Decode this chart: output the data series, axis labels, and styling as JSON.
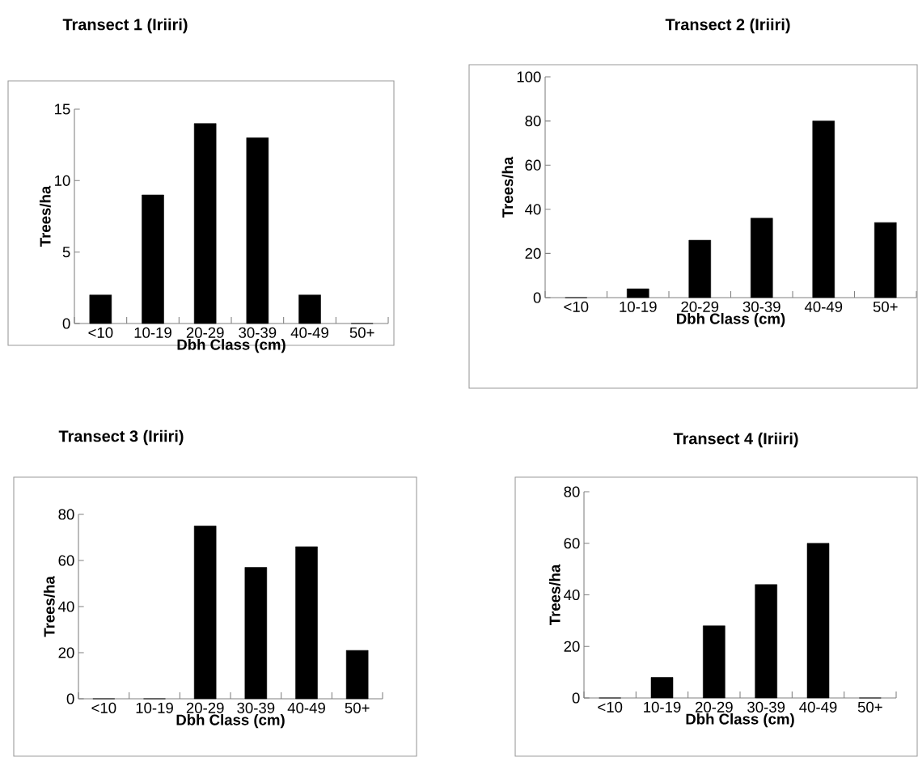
{
  "chart_data": [
    {
      "type": "bar",
      "title": "Transect 1 (Iriiri)",
      "xlabel": "Dbh Class (cm)",
      "ylabel": "Trees/ha",
      "categories": [
        "<10",
        "10-19",
        "20-29",
        "30-39",
        "40-49",
        "50+"
      ],
      "values": [
        2,
        9,
        14,
        13,
        2,
        0
      ],
      "color": "#000000",
      "ylim": [
        0,
        15
      ],
      "yticks": [
        0,
        5,
        10,
        15
      ]
    },
    {
      "type": "bar",
      "title": "Transect 2 (Iriiri)",
      "xlabel": "Dbh Class (cm)",
      "ylabel": "Trees/ha",
      "categories": [
        "<10",
        "10-19",
        "20-29",
        "30-39",
        "40-49",
        "50+"
      ],
      "values": [
        0,
        4,
        26,
        36,
        80,
        34
      ],
      "color": "#000000",
      "ylim": [
        0,
        100
      ],
      "yticks": [
        0,
        20,
        40,
        60,
        80,
        100
      ]
    },
    {
      "type": "bar",
      "title": "Transect 3 (Iriiri)",
      "xlabel": "Dbh Class (cm)",
      "ylabel": "Trees/ha",
      "categories": [
        "<10",
        "10-19",
        "20-29",
        "30-39",
        "40-49",
        "50+"
      ],
      "values": [
        0,
        0,
        75,
        57,
        66,
        21
      ],
      "color": "#000000",
      "ylim": [
        0,
        80
      ],
      "yticks": [
        0,
        20,
        40,
        60,
        80
      ]
    },
    {
      "type": "bar",
      "title": "Transect 4 (Iriiri)",
      "xlabel": "Dbh Class (cm)",
      "ylabel": "Trees/ha",
      "categories": [
        "<10",
        "10-19",
        "20-29",
        "30-39",
        "40-49",
        "50+"
      ],
      "values": [
        0,
        8,
        28,
        44,
        60,
        0
      ],
      "color": "#000000",
      "ylim": [
        0,
        80
      ],
      "yticks": [
        0,
        20,
        40,
        60,
        80
      ]
    }
  ]
}
